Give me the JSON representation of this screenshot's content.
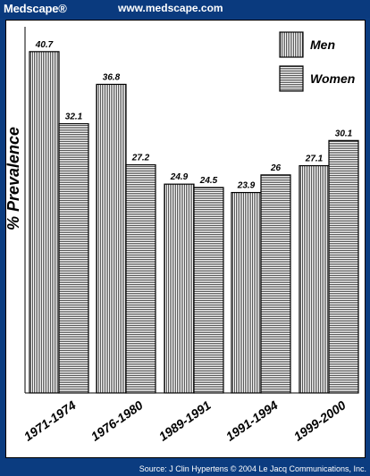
{
  "header": {
    "brand": "Medscape®",
    "url": "www.medscape.com"
  },
  "footer": {
    "source": "Source: J Clin Hypertens © 2004 Le Jacq Communications, Inc."
  },
  "chart_data": {
    "type": "bar",
    "title": "",
    "xlabel": "",
    "ylabel": "% Prevalence",
    "categories": [
      "1971-1974",
      "1976-1980",
      "1989-1991",
      "1991-1994",
      "1999-2000"
    ],
    "series": [
      {
        "name": "Men",
        "values": [
          40.7,
          36.8,
          24.9,
          23.9,
          27.1
        ],
        "pattern": "vertical-stripes"
      },
      {
        "name": "Women",
        "values": [
          32.1,
          27.2,
          24.5,
          26,
          30.1
        ],
        "pattern": "horizontal-stripes"
      }
    ],
    "value_labels": [
      [
        "40.7",
        "36.8",
        "24.9",
        "23.9",
        "27.1"
      ],
      [
        "32.1",
        "27.2",
        "24.5",
        "26",
        "30.1"
      ]
    ],
    "ylim": [
      0,
      42
    ],
    "grid": false,
    "legend": "top-right"
  }
}
